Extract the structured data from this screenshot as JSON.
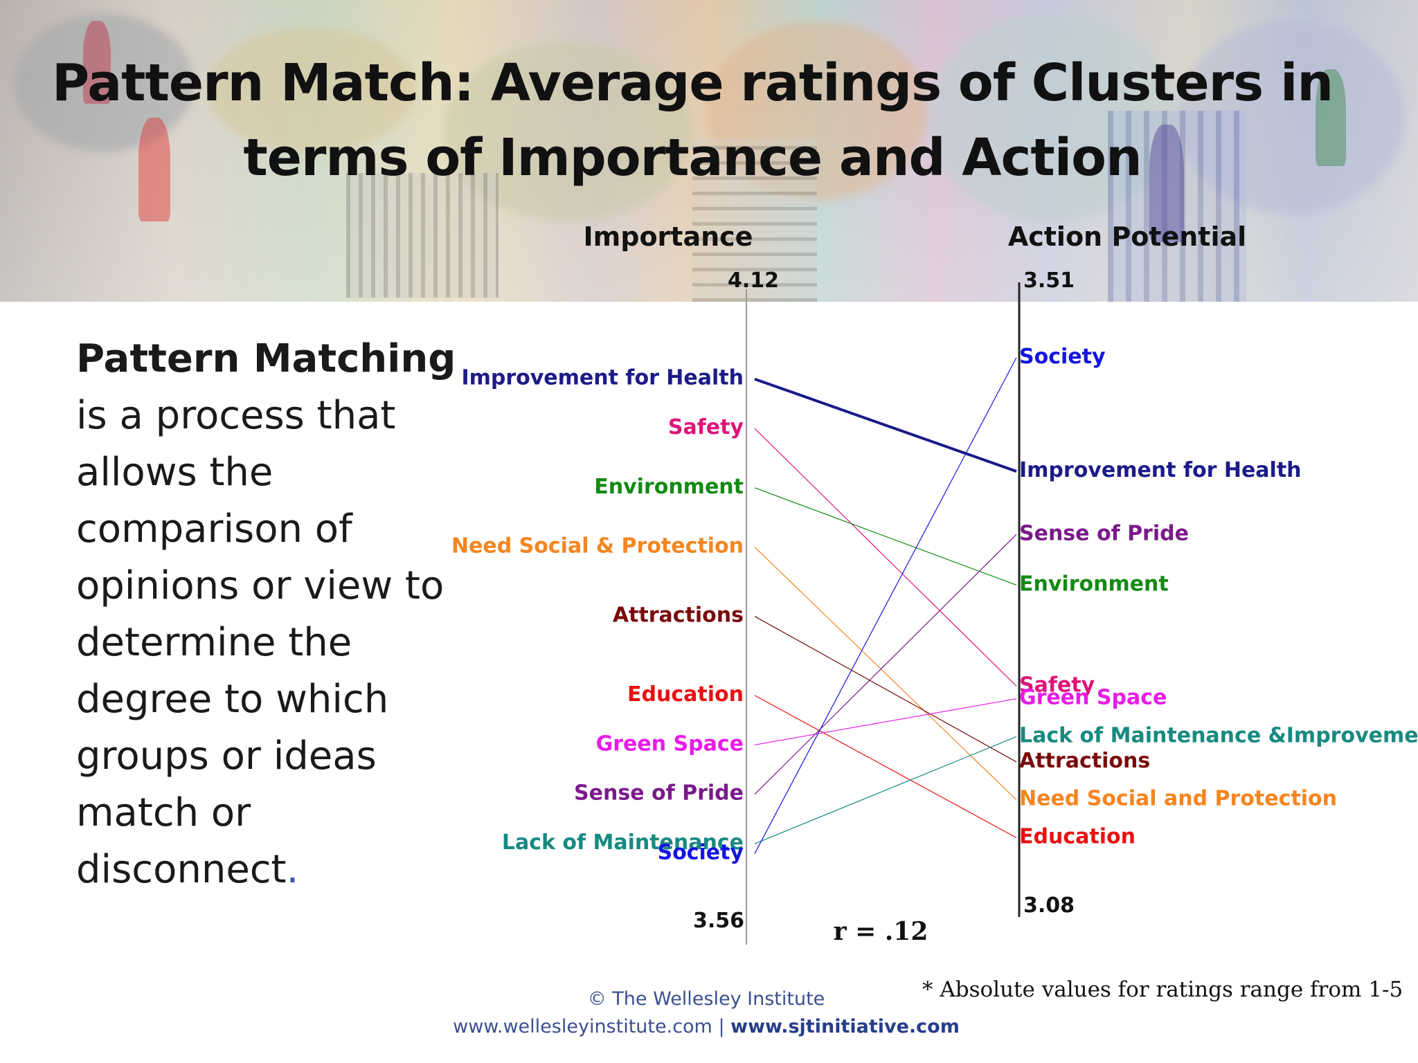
{
  "slide": {
    "title_line1": "Pattern Match: Average ratings of Clusters in",
    "title_line2": "terms of Importance and Action"
  },
  "side_text": {
    "lead": "Pattern Matching",
    "lines": [
      "is a process that",
      "allows the",
      "comparison of",
      "opinions or view to",
      "determine the",
      "degree to which",
      "groups or ideas",
      "match or",
      "disconnect"
    ],
    "end": "."
  },
  "chart_data": {
    "type": "ladder",
    "left_axis": {
      "label": "Importance",
      "max": 4.12,
      "min": 3.56,
      "max_label": "4.12",
      "min_label": "3.56"
    },
    "right_axis": {
      "label": "Action Potential",
      "max": 3.51,
      "min": 3.08,
      "max_label": "3.51",
      "min_label": "3.08"
    },
    "correlation": "r = .12",
    "series": [
      {
        "key": "health",
        "left_label": "Improvement for Health",
        "right_label": "Improvement for Health",
        "importance": 4.06,
        "action": 3.39,
        "color": "#1b1b8a",
        "emphasis": true
      },
      {
        "key": "safety",
        "left_label": "Safety",
        "right_label": "Safety",
        "importance": 4.01,
        "action": 3.22,
        "color": "#e0137a"
      },
      {
        "key": "environment",
        "left_label": "Environment",
        "right_label": "Environment",
        "importance": 3.95,
        "action": 3.3,
        "color": "#138a13"
      },
      {
        "key": "need",
        "left_label": "Need Social & Protection",
        "right_label": "Need Social and Protection",
        "importance": 3.89,
        "action": 3.13,
        "color": "#f5851f"
      },
      {
        "key": "attractions",
        "left_label": "Attractions",
        "right_label": "Attractions",
        "importance": 3.82,
        "action": 3.16,
        "color": "#7a0a0a"
      },
      {
        "key": "education",
        "left_label": "Education",
        "right_label": "Education",
        "importance": 3.74,
        "action": 3.1,
        "color": "#e81010"
      },
      {
        "key": "green",
        "left_label": "Green Space",
        "right_label": "Green Space",
        "importance": 3.69,
        "action": 3.21,
        "color": "#e81be8"
      },
      {
        "key": "pride",
        "left_label": "Sense of Pride",
        "right_label": "Sense of Pride",
        "importance": 3.64,
        "action": 3.34,
        "color": "#7a1a8a"
      },
      {
        "key": "maintenance",
        "left_label": "Lack of Maintenance",
        "right_label": "Lack of Maintenance &Improvement",
        "importance": 3.59,
        "action": 3.18,
        "color": "#178a80"
      },
      {
        "key": "society",
        "left_label": "Society",
        "right_label": "Society",
        "importance": 3.58,
        "action": 3.48,
        "color": "#1414e0"
      }
    ]
  },
  "footnote": "* Absolute values for ratings range from 1-5",
  "footer": {
    "copyright": "© The Wellesley Institute",
    "link1": "www.wellesleyinstitute.com",
    "separator": " | ",
    "link2": "www.sjtinitiative.com"
  }
}
